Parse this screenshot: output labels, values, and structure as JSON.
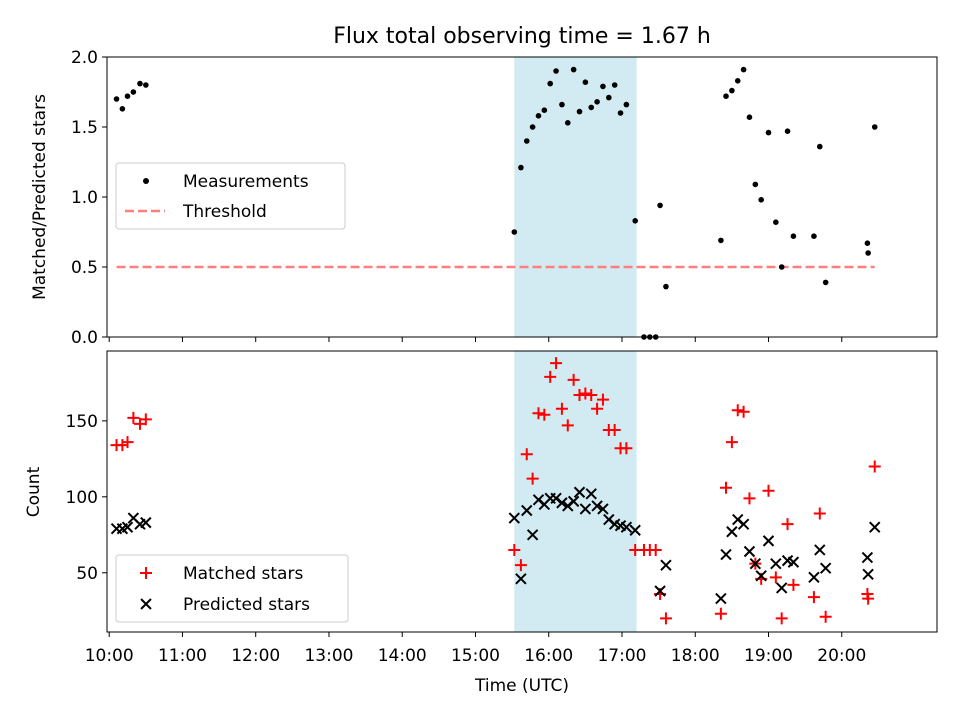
{
  "chart_data": {
    "type": "scatter",
    "title": "Flux total observing time = 1.67 h",
    "xlabel": "Time (UTC)",
    "x_ticks": [
      {
        "t": 10,
        "label": "10:00"
      },
      {
        "t": 11,
        "label": "11:00"
      },
      {
        "t": 12,
        "label": "12:00"
      },
      {
        "t": 13,
        "label": "13:00"
      },
      {
        "t": 14,
        "label": "14:00"
      },
      {
        "t": 15,
        "label": "15:00"
      },
      {
        "t": 16,
        "label": "16:00"
      },
      {
        "t": 17,
        "label": "17:00"
      },
      {
        "t": 18,
        "label": "18:00"
      },
      {
        "t": 19,
        "label": "19:00"
      },
      {
        "t": 20,
        "label": "20:00"
      }
    ],
    "xlim": [
      9.97,
      21.3
    ],
    "highlight_span": [
      15.53,
      17.2
    ],
    "colors": {
      "measurement": "#000000",
      "threshold": "#ff7f7f",
      "matched": "#ff0000",
      "predicted": "#000000",
      "span": "#add8e6"
    },
    "panels": [
      {
        "ylabel": "Matched/Predicted stars",
        "ylim": [
          0,
          2.0
        ],
        "y_ticks": [
          {
            "v": 0,
            "label": "0.0"
          },
          {
            "v": 0.5,
            "label": "0.5"
          },
          {
            "v": 1.0,
            "label": "1.0"
          },
          {
            "v": 1.5,
            "label": "1.5"
          },
          {
            "v": 2.0,
            "label": "2.0"
          }
        ],
        "legend": [
          "Measurements",
          "Threshold"
        ],
        "threshold": {
          "value": 0.5,
          "x_range": [
            10.1,
            20.45
          ]
        },
        "series": [
          {
            "name": "Measurements",
            "points": [
              [
                10.1,
                1.7
              ],
              [
                10.18,
                1.63
              ],
              [
                10.25,
                1.72
              ],
              [
                10.33,
                1.75
              ],
              [
                10.42,
                1.81
              ],
              [
                10.5,
                1.8
              ],
              [
                15.53,
                0.75
              ],
              [
                15.62,
                1.21
              ],
              [
                15.7,
                1.4
              ],
              [
                15.78,
                1.5
              ],
              [
                15.86,
                1.58
              ],
              [
                15.94,
                1.62
              ],
              [
                16.02,
                1.81
              ],
              [
                16.1,
                1.9
              ],
              [
                16.18,
                1.66
              ],
              [
                16.26,
                1.53
              ],
              [
                16.34,
                1.91
              ],
              [
                16.42,
                1.61
              ],
              [
                16.5,
                1.82
              ],
              [
                16.58,
                1.64
              ],
              [
                16.66,
                1.68
              ],
              [
                16.74,
                1.79
              ],
              [
                16.82,
                1.71
              ],
              [
                16.9,
                1.8
              ],
              [
                16.98,
                1.6
              ],
              [
                17.06,
                1.66
              ],
              [
                17.18,
                0.83
              ],
              [
                17.3,
                0.0
              ],
              [
                17.38,
                0.0
              ],
              [
                17.46,
                0.0
              ],
              [
                17.52,
                0.94
              ],
              [
                17.6,
                0.36
              ],
              [
                18.35,
                0.69
              ],
              [
                18.42,
                1.72
              ],
              [
                18.5,
                1.76
              ],
              [
                18.58,
                1.83
              ],
              [
                18.66,
                1.91
              ],
              [
                18.74,
                1.57
              ],
              [
                18.82,
                1.09
              ],
              [
                18.9,
                0.98
              ],
              [
                19.0,
                1.46
              ],
              [
                19.1,
                0.82
              ],
              [
                19.18,
                0.5
              ],
              [
                19.26,
                1.47
              ],
              [
                19.34,
                0.72
              ],
              [
                19.62,
                0.72
              ],
              [
                19.7,
                1.36
              ],
              [
                19.78,
                0.39
              ],
              [
                20.35,
                0.67
              ],
              [
                20.36,
                0.6
              ],
              [
                20.45,
                1.5
              ]
            ]
          }
        ]
      },
      {
        "ylabel": "Count",
        "ylim": [
          11,
          196
        ],
        "y_ticks": [
          {
            "v": 50,
            "label": "50"
          },
          {
            "v": 100,
            "label": "100"
          },
          {
            "v": 150,
            "label": "150"
          }
        ],
        "legend": [
          "Matched stars",
          "Predicted stars"
        ],
        "series": [
          {
            "name": "Matched stars",
            "points": [
              [
                10.1,
                134
              ],
              [
                10.18,
                134
              ],
              [
                10.25,
                136
              ],
              [
                10.33,
                152
              ],
              [
                10.42,
                148
              ],
              [
                10.5,
                151
              ],
              [
                15.53,
                65
              ],
              [
                15.62,
                55
              ],
              [
                15.7,
                128
              ],
              [
                15.78,
                112
              ],
              [
                15.86,
                155
              ],
              [
                15.94,
                154
              ],
              [
                16.02,
                179
              ],
              [
                16.1,
                188
              ],
              [
                16.18,
                158
              ],
              [
                16.26,
                147
              ],
              [
                16.34,
                177
              ],
              [
                16.42,
                167
              ],
              [
                16.5,
                168
              ],
              [
                16.58,
                167
              ],
              [
                16.66,
                158
              ],
              [
                16.74,
                164
              ],
              [
                16.82,
                144
              ],
              [
                16.9,
                144
              ],
              [
                16.98,
                132
              ],
              [
                17.06,
                132
              ],
              [
                17.18,
                65
              ],
              [
                17.3,
                65
              ],
              [
                17.38,
                65
              ],
              [
                17.46,
                65
              ],
              [
                17.52,
                36
              ],
              [
                17.6,
                20
              ],
              [
                18.35,
                23
              ],
              [
                18.42,
                106
              ],
              [
                18.5,
                136
              ],
              [
                18.58,
                157
              ],
              [
                18.66,
                156
              ],
              [
                18.74,
                99
              ],
              [
                18.82,
                56
              ],
              [
                18.9,
                46
              ],
              [
                19.0,
                104
              ],
              [
                19.1,
                47
              ],
              [
                19.18,
                20
              ],
              [
                19.26,
                82
              ],
              [
                19.34,
                42
              ],
              [
                19.62,
                34
              ],
              [
                19.7,
                89
              ],
              [
                19.78,
                21
              ],
              [
                20.35,
                36
              ],
              [
                20.36,
                33
              ],
              [
                20.45,
                120
              ]
            ]
          },
          {
            "name": "Predicted stars",
            "points": [
              [
                10.1,
                79
              ],
              [
                10.18,
                79
              ],
              [
                10.25,
                80
              ],
              [
                10.33,
                86
              ],
              [
                10.42,
                82
              ],
              [
                10.5,
                83
              ],
              [
                15.53,
                86
              ],
              [
                15.62,
                46
              ],
              [
                15.7,
                91
              ],
              [
                15.78,
                75
              ],
              [
                15.86,
                98
              ],
              [
                15.94,
                95
              ],
              [
                16.02,
                99
              ],
              [
                16.1,
                99
              ],
              [
                16.18,
                96
              ],
              [
                16.26,
                94
              ],
              [
                16.34,
                97
              ],
              [
                16.42,
                103
              ],
              [
                16.5,
                92
              ],
              [
                16.58,
                102
              ],
              [
                16.66,
                94
              ],
              [
                16.74,
                92
              ],
              [
                16.82,
                85
              ],
              [
                16.9,
                82
              ],
              [
                16.98,
                81
              ],
              [
                17.06,
                80
              ],
              [
                17.18,
                78
              ],
              [
                17.52,
                38
              ],
              [
                17.6,
                55
              ],
              [
                18.35,
                33
              ],
              [
                18.42,
                62
              ],
              [
                18.5,
                77
              ],
              [
                18.58,
                85
              ],
              [
                18.66,
                82
              ],
              [
                18.74,
                64
              ],
              [
                18.82,
                56
              ],
              [
                18.9,
                48
              ],
              [
                19.0,
                71
              ],
              [
                19.1,
                56
              ],
              [
                19.18,
                40
              ],
              [
                19.26,
                58
              ],
              [
                19.34,
                57
              ],
              [
                19.62,
                47
              ],
              [
                19.7,
                65
              ],
              [
                19.78,
                53
              ],
              [
                20.35,
                60
              ],
              [
                20.36,
                49
              ],
              [
                20.45,
                80
              ]
            ]
          }
        ]
      }
    ]
  }
}
